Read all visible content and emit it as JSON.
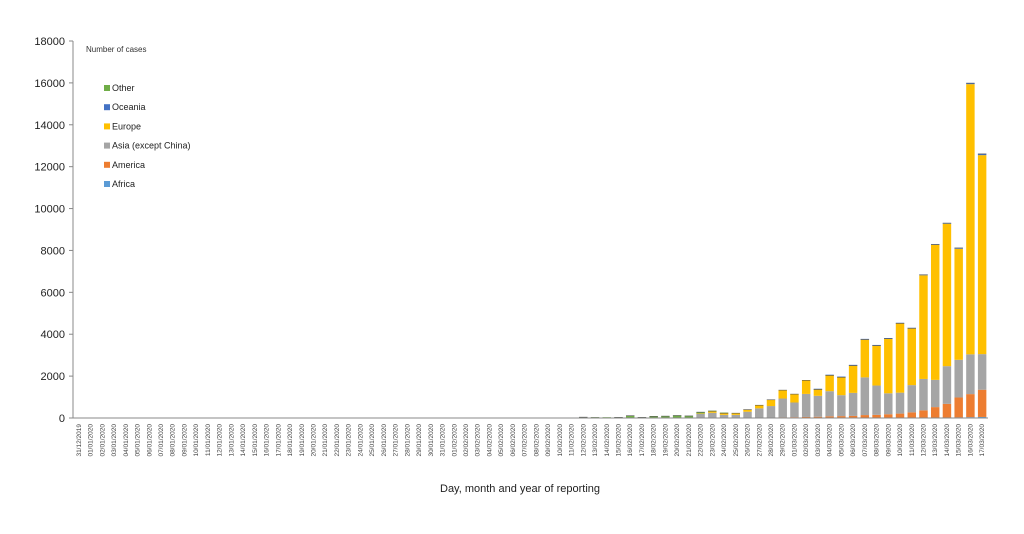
{
  "chart_data": {
    "type": "bar",
    "stacked": true,
    "ylabel": "Number of cases",
    "xlabel": "Day, month and year of reporting",
    "ylim": [
      0,
      18000
    ],
    "yticks": [
      "0",
      "2000",
      "4000",
      "6000",
      "8000",
      "10000",
      "12000",
      "14000",
      "16000",
      "18000"
    ],
    "grid": false,
    "legend_position": "top-left",
    "categories": [
      "31/12/2019",
      "01/01/2020",
      "02/01/2020",
      "03/01/2020",
      "04/01/2020",
      "05/01/2020",
      "06/01/2020",
      "07/01/2020",
      "08/01/2020",
      "09/01/2020",
      "10/01/2020",
      "11/01/2020",
      "12/01/2020",
      "13/01/2020",
      "14/01/2020",
      "15/01/2020",
      "16/01/2020",
      "17/01/2020",
      "18/01/2020",
      "19/01/2020",
      "20/01/2020",
      "21/01/2020",
      "22/01/2020",
      "23/01/2020",
      "24/01/2020",
      "25/01/2020",
      "26/01/2020",
      "27/01/2020",
      "28/01/2020",
      "29/01/2020",
      "30/01/2020",
      "31/01/2020",
      "01/02/2020",
      "02/02/2020",
      "03/02/2020",
      "04/02/2020",
      "05/02/2020",
      "06/02/2020",
      "07/02/2020",
      "08/02/2020",
      "09/02/2020",
      "10/02/2020",
      "11/02/2020",
      "12/02/2020",
      "13/02/2020",
      "14/02/2020",
      "15/02/2020",
      "16/02/2020",
      "17/02/2020",
      "18/02/2020",
      "19/02/2020",
      "20/02/2020",
      "21/02/2020",
      "22/02/2020",
      "23/02/2020",
      "24/02/2020",
      "25/02/2020",
      "26/02/2020",
      "27/02/2020",
      "28/02/2020",
      "29/02/2020",
      "01/03/2020",
      "02/03/2020",
      "03/03/2020",
      "04/03/2020",
      "05/03/2020",
      "06/03/2020",
      "07/03/2020",
      "08/03/2020",
      "09/03/2020",
      "10/03/2020",
      "11/03/2020",
      "12/03/2020",
      "13/03/2020",
      "14/03/2020",
      "15/03/2020",
      "16/03/2020",
      "17/03/2020"
    ],
    "series": [
      {
        "name": "Africa",
        "color": "#5b9bd5",
        "values": [
          0,
          0,
          0,
          0,
          0,
          0,
          0,
          0,
          0,
          0,
          0,
          0,
          0,
          0,
          0,
          0,
          0,
          0,
          0,
          0,
          0,
          0,
          0,
          0,
          0,
          0,
          0,
          0,
          0,
          0,
          0,
          0,
          0,
          0,
          0,
          0,
          0,
          0,
          0,
          0,
          0,
          0,
          0,
          0,
          0,
          0,
          0,
          0,
          0,
          0,
          0,
          0,
          0,
          0,
          0,
          0,
          0,
          0,
          0,
          0,
          0,
          0,
          0,
          0,
          0,
          0,
          0,
          0,
          0,
          0,
          0,
          10,
          15,
          20,
          25,
          30,
          40,
          50
        ]
      },
      {
        "name": "America",
        "color": "#ed7d31",
        "values": [
          0,
          0,
          0,
          0,
          0,
          0,
          0,
          0,
          0,
          0,
          0,
          0,
          0,
          0,
          0,
          0,
          0,
          0,
          0,
          0,
          0,
          0,
          0,
          0,
          0,
          0,
          0,
          0,
          0,
          0,
          0,
          0,
          0,
          0,
          0,
          0,
          0,
          0,
          0,
          0,
          0,
          0,
          0,
          0,
          0,
          0,
          0,
          0,
          0,
          0,
          0,
          0,
          0,
          0,
          0,
          0,
          0,
          0,
          10,
          20,
          30,
          40,
          50,
          60,
          80,
          90,
          100,
          140,
          150,
          180,
          210,
          260,
          350,
          500,
          650,
          950,
          1100,
          1300
        ]
      },
      {
        "name": "Asia (except China)",
        "color": "#a5a5a5",
        "values": [
          0,
          0,
          0,
          0,
          0,
          0,
          0,
          0,
          0,
          0,
          0,
          0,
          0,
          0,
          0,
          0,
          0,
          0,
          0,
          0,
          0,
          0,
          0,
          0,
          0,
          0,
          0,
          0,
          0,
          0,
          0,
          0,
          0,
          0,
          0,
          0,
          0,
          0,
          0,
          0,
          0,
          0,
          0,
          0,
          0,
          0,
          0,
          0,
          0,
          0,
          0,
          0,
          0,
          200,
          250,
          150,
          150,
          300,
          450,
          550,
          900,
          700,
          1100,
          1000,
          1200,
          1000,
          1100,
          1800,
          1400,
          1000,
          1000,
          1300,
          1500,
          1300,
          1800,
          1800,
          1900,
          1700
        ]
      },
      {
        "name": "Europe",
        "color": "#ffc000",
        "values": [
          0,
          0,
          0,
          0,
          0,
          0,
          0,
          0,
          0,
          0,
          0,
          0,
          0,
          0,
          0,
          0,
          0,
          0,
          0,
          0,
          0,
          0,
          0,
          0,
          0,
          0,
          0,
          0,
          0,
          0,
          0,
          0,
          0,
          0,
          0,
          0,
          0,
          0,
          0,
          0,
          0,
          0,
          0,
          0,
          0,
          0,
          0,
          0,
          0,
          0,
          0,
          0,
          0,
          20,
          60,
          70,
          80,
          100,
          150,
          300,
          400,
          400,
          650,
          300,
          750,
          850,
          1300,
          1800,
          1900,
          2600,
          3300,
          2700,
          4950,
          6450,
          6800,
          5300,
          12900,
          9500
        ]
      },
      {
        "name": "Oceania",
        "color": "#4472c4",
        "values": [
          0,
          0,
          0,
          0,
          0,
          0,
          0,
          0,
          0,
          0,
          0,
          0,
          0,
          0,
          0,
          0,
          0,
          0,
          0,
          0,
          0,
          0,
          0,
          0,
          0,
          0,
          0,
          0,
          0,
          0,
          0,
          0,
          0,
          0,
          0,
          0,
          0,
          0,
          0,
          0,
          0,
          0,
          0,
          0,
          0,
          0,
          0,
          0,
          0,
          0,
          0,
          0,
          0,
          0,
          0,
          0,
          0,
          0,
          0,
          0,
          0,
          0,
          0,
          5,
          5,
          5,
          5,
          10,
          10,
          10,
          10,
          15,
          20,
          20,
          30,
          40,
          50,
          60
        ]
      },
      {
        "name": "Other",
        "color": "#70ad47",
        "values": [
          0,
          0,
          0,
          0,
          0,
          0,
          0,
          0,
          0,
          0,
          0,
          0,
          0,
          0,
          0,
          0,
          0,
          0,
          0,
          0,
          0,
          0,
          0,
          0,
          0,
          0,
          0,
          0,
          0,
          0,
          0,
          0,
          0,
          0,
          0,
          0,
          0,
          0,
          0,
          0,
          0,
          0,
          0,
          40,
          20,
          10,
          30,
          110,
          30,
          80,
          90,
          120,
          100,
          60,
          20,
          10,
          0,
          0,
          0,
          0,
          0,
          0,
          0,
          0,
          0,
          0,
          0,
          0,
          0,
          0,
          0,
          0,
          0,
          0,
          0,
          0,
          0,
          0
        ]
      }
    ]
  }
}
